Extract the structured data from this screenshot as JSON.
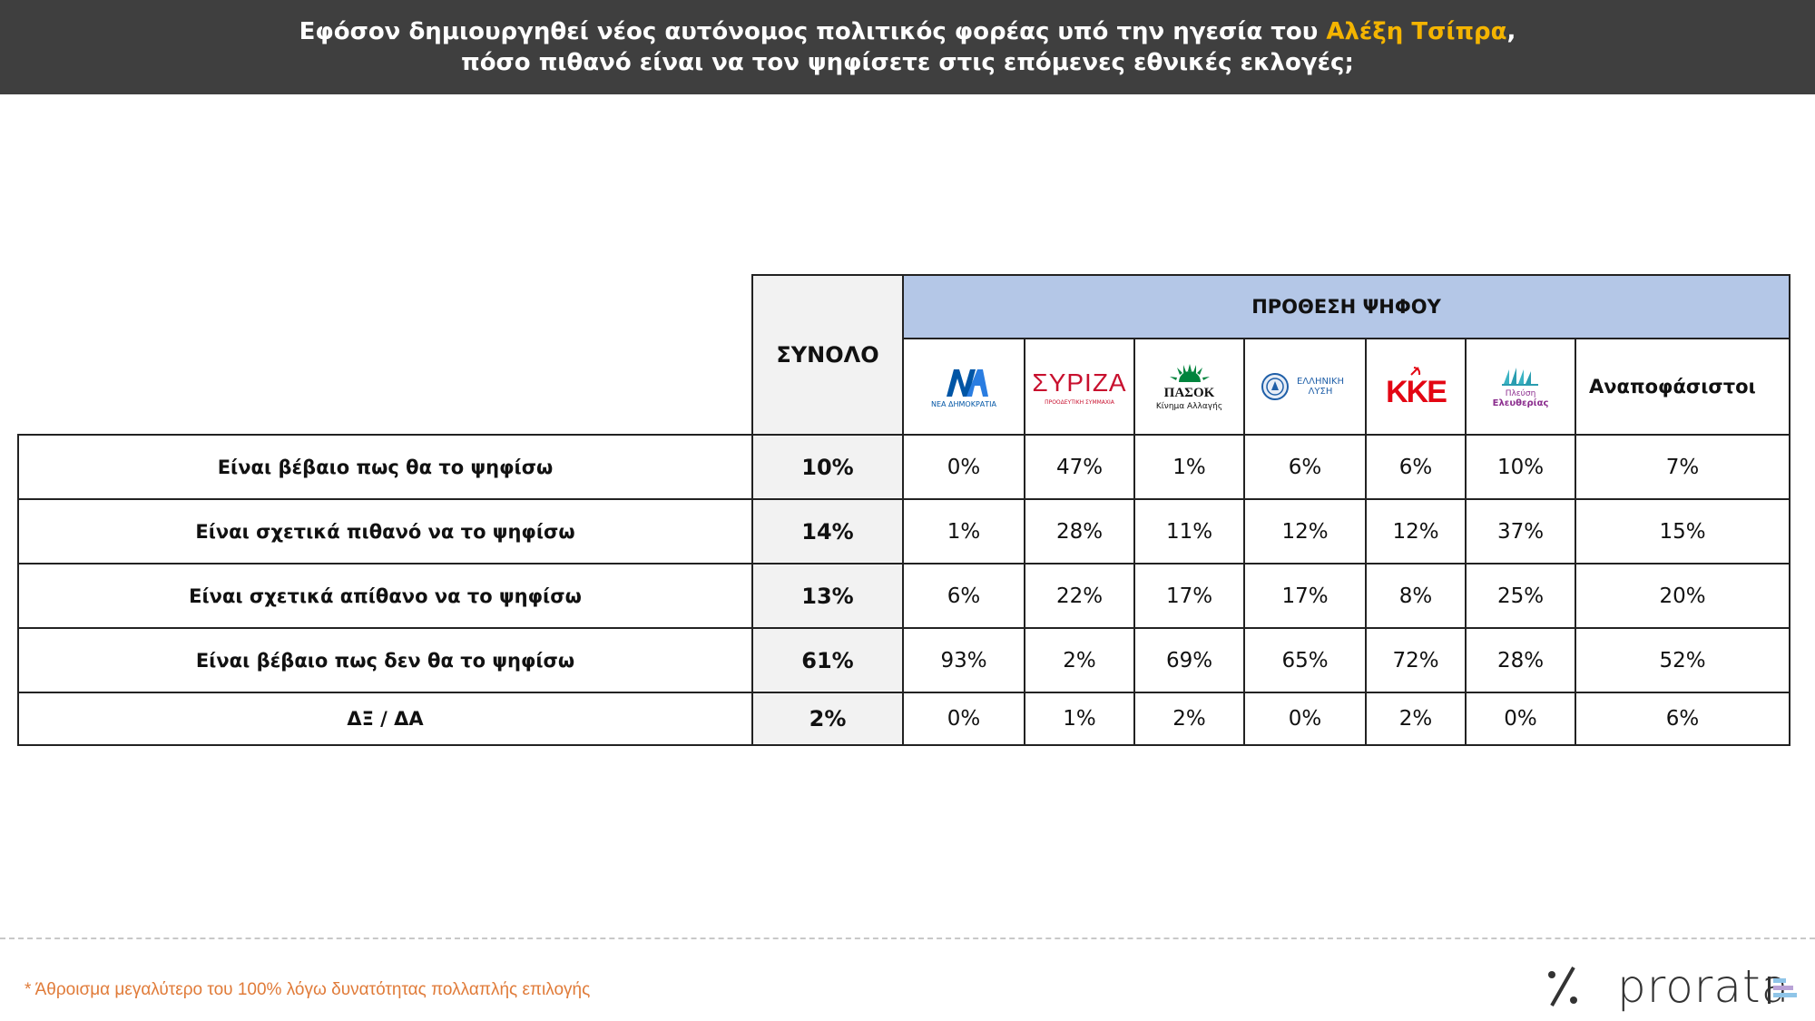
{
  "header": {
    "line1_pre": "Εφόσον δημιουργηθεί νέος αυτόνομος πολιτικός φορέας υπό την ηγεσία του ",
    "line1_highlight": "Αλέξη Τσίπρα",
    "line1_post": ",",
    "line2": "πόσο πιθανό είναι να τον ψηφίσετε στις επόμενες εθνικές εκλογές;"
  },
  "table": {
    "total_header": "ΣΥΝΟΛΟ",
    "intent_header": "ΠΡΟΘΕΣΗ ΨΗΦΟΥ",
    "parties": [
      {
        "name": "Νέα Δημοκρατία",
        "logo_text": "ΝΔ",
        "logo_caption": "ΝΕΑ ΔΗΜΟΚΡΑΤΙΑ",
        "color": "#0055a5"
      },
      {
        "name": "ΣΥΡΙΖΑ",
        "logo_text": "ΣΥΡΙΖΑ",
        "logo_caption": "ΠΡΟΟΔΕΥΤΙΚΗ ΣΥΜΜΑΧΙΑ",
        "color": "#c8102e"
      },
      {
        "name": "ΠΑΣΟΚ",
        "logo_text": "ΠΑΣΟΚ",
        "logo_caption": "Κίνημα Αλλαγής",
        "color": "#00843d"
      },
      {
        "name": "Ελληνική Λύση",
        "logo_text": "ΕΛΛΗΝΙΚΗ ΛΥΣΗ",
        "logo_caption": "",
        "color": "#1f5fa8"
      },
      {
        "name": "ΚΚΕ",
        "logo_text": "ΚΚΕ",
        "logo_caption": "",
        "color": "#e30613"
      },
      {
        "name": "Πλεύση Ελευθερίας",
        "logo_text": "Πλεύση",
        "logo_caption": "Ελευθερίας",
        "color": "#8b2d8e"
      }
    ],
    "undecided_header": "Αναποφάσιστοι",
    "rows": [
      {
        "label": "Είναι βέβαιο πως θα το ψηφίσω",
        "total": "10%",
        "values": [
          "0%",
          "47%",
          "1%",
          "6%",
          "6%",
          "10%",
          "7%"
        ]
      },
      {
        "label": "Είναι σχετικά πιθανό να το ψηφίσω",
        "total": "14%",
        "values": [
          "1%",
          "28%",
          "11%",
          "12%",
          "12%",
          "37%",
          "15%"
        ]
      },
      {
        "label": "Είναι σχετικά απίθανο να το ψηφίσω",
        "total": "13%",
        "values": [
          "6%",
          "22%",
          "17%",
          "17%",
          "8%",
          "25%",
          "20%"
        ]
      },
      {
        "label": "Είναι βέβαιο πως δεν θα το ψηφίσω",
        "total": "61%",
        "values": [
          "93%",
          "2%",
          "69%",
          "65%",
          "72%",
          "28%",
          "52%"
        ]
      },
      {
        "label": "ΔΞ / ΔΑ",
        "total": "2%",
        "values": [
          "0%",
          "1%",
          "2%",
          "0%",
          "2%",
          "0%",
          "6%"
        ]
      }
    ]
  },
  "footer": {
    "footnote": "* Άθροισμα μεγαλύτερο του 100% λόγω δυνατότητας πολλαπλής επιλογής",
    "brand_symbol": "%",
    "brand_name": "prorata"
  }
}
